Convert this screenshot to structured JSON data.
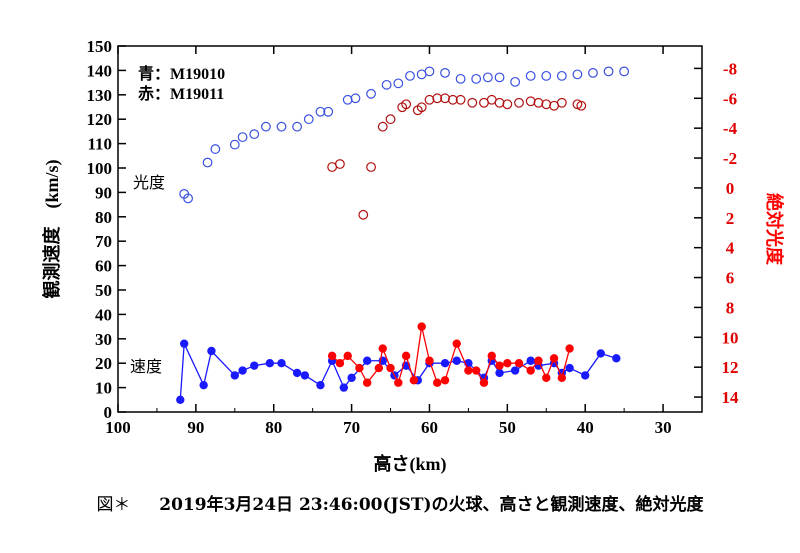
{
  "caption": {
    "prefix": "図＊",
    "text": "2019年3月24日 23:46:00(JST)の火球、高さと観測速度、絶対光度"
  },
  "chart_data": {
    "type": "scatter",
    "x_axis": {
      "label": "高さ(km)",
      "range": [
        100,
        25
      ],
      "ticks": [
        100,
        90,
        80,
        70,
        60,
        50,
        40,
        30
      ]
    },
    "y_axis_left": {
      "label": "観測速度　(km/s)",
      "range": [
        0,
        150
      ],
      "ticks": [
        0,
        10,
        20,
        30,
        40,
        50,
        60,
        70,
        80,
        90,
        100,
        110,
        120,
        130,
        140,
        150
      ]
    },
    "y_axis_right": {
      "label": "絶対光度",
      "range": [
        15,
        -9.5
      ],
      "ticks": [
        14,
        12,
        10,
        8,
        6,
        4,
        2,
        0,
        -2,
        -4,
        -6,
        -8
      ],
      "tick_labels": [
        "14",
        "12",
        "10",
        "8",
        "6",
        "4",
        "2",
        "0",
        "-2",
        "-4",
        "-6",
        "-8"
      ]
    },
    "legend": {
      "blue_label": "青：M19010",
      "red_label": "赤：M19011"
    },
    "annotations": {
      "brightness": "光度",
      "velocity": "速度"
    },
    "colors": {
      "blue": "#1a1aff",
      "red": "#ff0000",
      "dark_red": "#b01010",
      "blue_open": "#3a50e0"
    },
    "series": [
      {
        "name": "M19010 光度",
        "axis": "right",
        "style": "open-circle",
        "color": "blue_open",
        "x": [
          91.5,
          91,
          88.5,
          87.5,
          85,
          84,
          82.5,
          81,
          79,
          77,
          75.5,
          74,
          73,
          70.5,
          69.5,
          67.5,
          65.5,
          64,
          62.5,
          61,
          60,
          58,
          56,
          54,
          52.5,
          51,
          49,
          47,
          45,
          43,
          41,
          39,
          37,
          35
        ],
        "y": [
          0.4,
          0.7,
          -1.7,
          -2.6,
          -2.9,
          -3.4,
          -3.6,
          -4.1,
          -4.1,
          -4.1,
          -4.6,
          -5.1,
          -5.1,
          -5.9,
          -6.0,
          -6.3,
          -6.9,
          -7.0,
          -7.5,
          -7.6,
          -7.8,
          -7.7,
          -7.3,
          -7.3,
          -7.4,
          -7.4,
          -7.1,
          -7.5,
          -7.5,
          -7.5,
          -7.6,
          -7.7,
          -7.8,
          -7.8
        ]
      },
      {
        "name": "M19011 光度",
        "axis": "right",
        "style": "open-circle",
        "color": "dark_red",
        "x": [
          72.5,
          71.5,
          68.5,
          67.5,
          66,
          65,
          63.5,
          63,
          61.5,
          61,
          60,
          59,
          58,
          57,
          56,
          54.5,
          53,
          52,
          51,
          50,
          48.5,
          47,
          46,
          45,
          44,
          43,
          41,
          40.5
        ],
        "y": [
          -1.4,
          -1.6,
          1.8,
          -1.4,
          -4.1,
          -4.6,
          -5.4,
          -5.6,
          -5.2,
          -5.4,
          -5.9,
          -6.0,
          -6.0,
          -5.9,
          -5.9,
          -5.7,
          -5.7,
          -5.9,
          -5.7,
          -5.6,
          -5.7,
          -5.8,
          -5.7,
          -5.6,
          -5.5,
          -5.7,
          -5.6,
          -5.5
        ]
      },
      {
        "name": "M19010 速度",
        "axis": "left",
        "style": "filled-line",
        "color": "blue",
        "x": [
          92,
          91.5,
          89,
          88,
          85,
          84,
          82.5,
          80.5,
          79,
          77,
          76,
          74,
          72.5,
          71,
          70,
          68,
          66,
          64.5,
          63,
          61.5,
          60,
          58,
          56.5,
          55,
          53,
          52,
          51,
          49,
          47,
          46,
          44,
          43,
          42,
          40,
          38,
          36
        ],
        "y": [
          5,
          28,
          11,
          25,
          15,
          17,
          19,
          20,
          20,
          16,
          15,
          11,
          21,
          10,
          14,
          21,
          21,
          15,
          19,
          13,
          20,
          20,
          21,
          20,
          14,
          21,
          16,
          17,
          21,
          19,
          20,
          16,
          18,
          15,
          24,
          22
        ]
      },
      {
        "name": "M19011 速度",
        "axis": "left",
        "style": "filled-line",
        "color": "red",
        "x": [
          72.5,
          71.5,
          70.5,
          69,
          68,
          66.5,
          66,
          65,
          64,
          63,
          62,
          61,
          60,
          59,
          58,
          56.5,
          55,
          54,
          53,
          52,
          51,
          50,
          48.5,
          47,
          46,
          45,
          44,
          43,
          42
        ],
        "y": [
          23,
          20,
          23,
          18,
          12,
          18,
          26,
          18,
          12,
          23,
          13,
          35,
          21,
          12,
          13,
          28,
          17,
          17,
          12,
          23,
          19,
          20,
          20,
          17,
          21,
          14,
          22,
          14,
          26
        ]
      }
    ]
  }
}
